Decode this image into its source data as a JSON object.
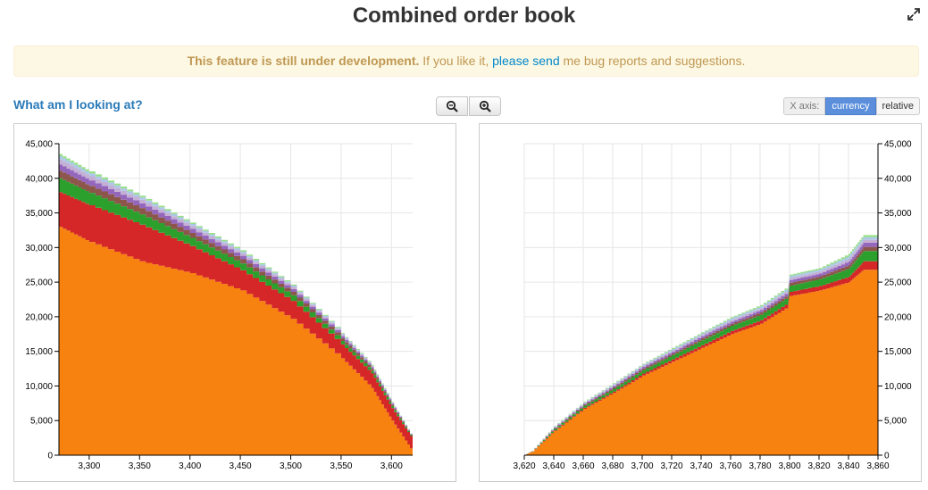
{
  "header": {
    "title": "Combined order book"
  },
  "notice": {
    "bold_text": "This feature is still under development.",
    "text_before_link": " If you like it, ",
    "link_text": "please send",
    "text_after_link": " me bug reports and suggestions."
  },
  "help_link": "What am I looking at?",
  "toolbar": {
    "zoom_out_icon": "zoom-out-icon",
    "zoom_in_icon": "zoom-in-icon",
    "xaxis_label": "X axis:",
    "xaxis_options": [
      "currency",
      "relative"
    ],
    "xaxis_selected": "currency"
  },
  "colors": [
    "#f7820f",
    "#d62728",
    "#2ca02c",
    "#8c564b",
    "#9467bd",
    "#c5b0d5",
    "#aec7e8",
    "#98df8a",
    "#e377c2",
    "#9edae5"
  ],
  "chart_data": [
    {
      "type": "area",
      "title": "",
      "xlabel": "",
      "ylabel": "",
      "xlim": [
        3270,
        3621
      ],
      "ylim": [
        0,
        45000
      ],
      "x_ticks": [
        "3,300",
        "3,350",
        "3,400",
        "3,450",
        "3,500",
        "3,550",
        "3,600"
      ],
      "y_ticks": [
        "0",
        "5,000",
        "10,000",
        "15,000",
        "20,000",
        "25,000",
        "30,000",
        "35,000",
        "40,000",
        "45,000"
      ],
      "grid": true,
      "y_axis_position": "left",
      "x": [
        3270,
        3300,
        3350,
        3400,
        3450,
        3500,
        3550,
        3580,
        3600,
        3621
      ],
      "series": [
        {
          "values": [
            33000,
            30800,
            28000,
            26300,
            23800,
            19700,
            14000,
            9700,
            5000,
            400
          ]
        },
        {
          "values": [
            5000,
            5300,
            5300,
            3900,
            2900,
            2600,
            2000,
            2100,
            1800,
            1800
          ]
        },
        {
          "values": [
            2000,
            1800,
            1500,
            1200,
            1000,
            800,
            500,
            400,
            300,
            100
          ]
        },
        {
          "values": [
            1100,
            1000,
            900,
            700,
            600,
            500,
            400,
            300,
            200,
            50
          ]
        },
        {
          "values": [
            900,
            800,
            700,
            600,
            500,
            400,
            300,
            200,
            150,
            50
          ]
        },
        {
          "values": [
            700,
            600,
            500,
            400,
            350,
            300,
            200,
            150,
            100,
            30
          ]
        },
        {
          "values": [
            500,
            400,
            350,
            300,
            250,
            200,
            150,
            100,
            80,
            20
          ]
        },
        {
          "values": [
            300,
            300,
            250,
            200,
            200,
            150,
            100,
            100,
            50,
            20
          ]
        }
      ]
    },
    {
      "type": "area",
      "title": "",
      "xlabel": "",
      "ylabel": "",
      "xlim": [
        3620,
        3860
      ],
      "ylim": [
        0,
        45000
      ],
      "x_ticks": [
        "3,620",
        "3,640",
        "3,660",
        "3,680",
        "3,700",
        "3,720",
        "3,740",
        "3,760",
        "3,780",
        "3,800",
        "3,820",
        "3,840",
        "3,860"
      ],
      "y_ticks": [
        "0",
        "5,000",
        "10,000",
        "15,000",
        "20,000",
        "25,000",
        "30,000",
        "35,000",
        "40,000",
        "45,000"
      ],
      "grid": true,
      "y_axis_position": "right",
      "x": [
        3620,
        3625,
        3640,
        3660,
        3680,
        3700,
        3720,
        3740,
        3760,
        3780,
        3799,
        3800,
        3820,
        3840,
        3850,
        3860
      ],
      "series": [
        {
          "values": [
            0,
            500,
            3500,
            6700,
            9000,
            11500,
            13500,
            15500,
            17500,
            19000,
            21500,
            23000,
            23800,
            25000,
            26800,
            26800
          ]
        },
        {
          "values": [
            0,
            20,
            100,
            150,
            200,
            300,
            350,
            400,
            450,
            500,
            550,
            600,
            650,
            800,
            1200,
            1200
          ]
        },
        {
          "values": [
            0,
            30,
            200,
            300,
            400,
            500,
            600,
            700,
            750,
            800,
            850,
            900,
            1000,
            1200,
            1500,
            1500
          ]
        },
        {
          "values": [
            0,
            10,
            100,
            150,
            200,
            250,
            250,
            300,
            300,
            350,
            350,
            400,
            400,
            500,
            600,
            600
          ]
        },
        {
          "values": [
            0,
            10,
            100,
            150,
            200,
            250,
            250,
            300,
            300,
            350,
            350,
            400,
            400,
            500,
            600,
            600
          ]
        },
        {
          "values": [
            0,
            10,
            80,
            100,
            150,
            150,
            200,
            200,
            250,
            250,
            300,
            300,
            300,
            400,
            400,
            400
          ]
        },
        {
          "values": [
            0,
            10,
            80,
            100,
            150,
            150,
            200,
            200,
            250,
            250,
            300,
            300,
            300,
            400,
            400,
            400
          ]
        },
        {
          "values": [
            0,
            10,
            50,
            80,
            100,
            100,
            150,
            150,
            150,
            200,
            200,
            200,
            200,
            300,
            300,
            300
          ]
        }
      ]
    }
  ]
}
